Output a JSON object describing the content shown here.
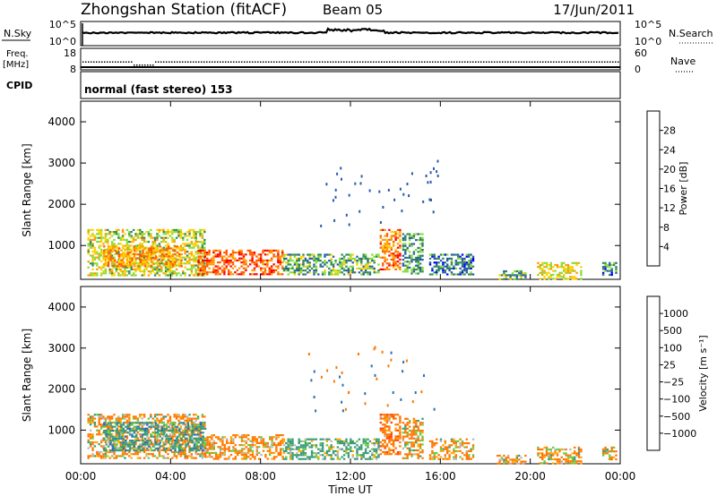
{
  "header": {
    "title": "Zhongshan Station (fitACF)",
    "beam": "Beam 05",
    "date": "17/Jun/2011"
  },
  "panels": {
    "noise": {
      "left_label": "N.Sky",
      "right_label": "N.Search",
      "left_ticks": [
        "10^5",
        "10^0"
      ],
      "right_ticks": [
        "10^5",
        "10^0"
      ]
    },
    "freq": {
      "left_label": "Freq.",
      "left_unit": "[MHz]",
      "left_ticks": [
        "18",
        "8"
      ],
      "right_label": "Nave",
      "right_ticks": [
        "60",
        "0"
      ]
    },
    "cpid": {
      "label": "CPID",
      "text": "normal (fast stereo) 153"
    }
  },
  "chart_data": [
    {
      "type": "heatmap",
      "name": "power",
      "ylabel": "Slant Range [km]",
      "xlabel": "",
      "ylim": [
        180,
        4500
      ],
      "xlim": [
        0,
        24
      ],
      "yticks": [
        "1000",
        "2000",
        "3000",
        "4000"
      ],
      "colorbar": {
        "label": "Power [dB]",
        "ticks": [
          "28",
          "24",
          "20",
          "16",
          "12",
          "8",
          "4"
        ],
        "colors": [
          "#ff0000",
          "#ff5a00",
          "#ff9900",
          "#ffd000",
          "#88dd33",
          "#2e8b57",
          "#2a5aa8",
          "#0000ff"
        ]
      },
      "regions": [
        {
          "x0": 0.3,
          "x1": 5.5,
          "y0": 300,
          "y1": 1400,
          "level": 16
        },
        {
          "x0": 1.0,
          "x1": 4.5,
          "y0": 500,
          "y1": 1000,
          "level": 22
        },
        {
          "x0": 5.2,
          "x1": 9.0,
          "y0": 300,
          "y1": 900,
          "level": 26
        },
        {
          "x0": 9.0,
          "x1": 13.3,
          "y0": 300,
          "y1": 800,
          "level": 12
        },
        {
          "x0": 13.3,
          "x1": 14.2,
          "y0": 400,
          "y1": 1400,
          "level": 24
        },
        {
          "x0": 14.3,
          "x1": 15.2,
          "y0": 300,
          "y1": 1300,
          "level": 10
        },
        {
          "x0": 15.5,
          "x1": 17.5,
          "y0": 300,
          "y1": 800,
          "level": 8
        },
        {
          "x0": 18.5,
          "x1": 19.8,
          "y0": 200,
          "y1": 400,
          "level": 12
        },
        {
          "x0": 20.3,
          "x1": 22.3,
          "y0": 200,
          "y1": 600,
          "level": 18
        },
        {
          "x0": 23.2,
          "x1": 23.8,
          "y0": 300,
          "y1": 600,
          "level": 8
        }
      ]
    },
    {
      "type": "heatmap",
      "name": "velocity",
      "ylabel": "Slant Range [km]",
      "xlabel": "Time UT",
      "ylim": [
        180,
        4500
      ],
      "xlim": [
        0,
        24
      ],
      "xticks": [
        "00:00",
        "04:00",
        "08:00",
        "12:00",
        "16:00",
        "20:00",
        "00:00"
      ],
      "yticks": [
        "1000",
        "2000",
        "3000",
        "4000"
      ],
      "colorbar": {
        "label": "Velocity [m s⁻¹]",
        "ticks": [
          "1000",
          "500",
          "100",
          "25",
          "−25",
          "−100",
          "−500",
          "−1000"
        ],
        "colors": [
          "#2040c0",
          "#2a70b0",
          "#3a9a7a",
          "#66cc44",
          "#b8b8b8",
          "#ffaa00",
          "#ff7700",
          "#ff4400",
          "#ff0000"
        ]
      },
      "regions": [
        {
          "x0": 0.3,
          "x1": 5.5,
          "y0": 300,
          "y1": 1400,
          "level": -150
        },
        {
          "x0": 1.0,
          "x1": 5.5,
          "y0": 500,
          "y1": 1200,
          "level": 300
        },
        {
          "x0": 5.5,
          "x1": 9.0,
          "y0": 300,
          "y1": 900,
          "level": -200
        },
        {
          "x0": 9.0,
          "x1": 13.3,
          "y0": 300,
          "y1": 800,
          "level": 200
        },
        {
          "x0": 13.3,
          "x1": 14.2,
          "y0": 400,
          "y1": 1400,
          "level": -300
        },
        {
          "x0": 14.3,
          "x1": 15.2,
          "y0": 300,
          "y1": 1300,
          "level": -150
        },
        {
          "x0": 15.5,
          "x1": 17.5,
          "y0": 300,
          "y1": 800,
          "level": -150
        },
        {
          "x0": 18.5,
          "x1": 19.8,
          "y0": 200,
          "y1": 400,
          "level": -100
        },
        {
          "x0": 20.3,
          "x1": 22.3,
          "y0": 200,
          "y1": 600,
          "level": -150
        },
        {
          "x0": 23.2,
          "x1": 23.8,
          "y0": 300,
          "y1": 600,
          "level": -150
        }
      ]
    }
  ]
}
